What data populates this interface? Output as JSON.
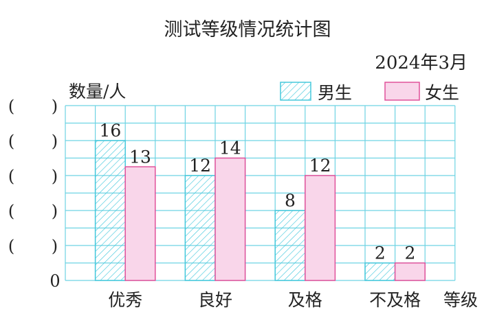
{
  "chart_data": {
    "type": "bar",
    "title": "测试等级情况统计图",
    "subtitle": "2024年3月",
    "ylabel": "数量/人",
    "xlabel": "等级",
    "categories": [
      "优秀",
      "良好",
      "及格",
      "不及格"
    ],
    "series": [
      {
        "name": "男生",
        "values": [
          16,
          12,
          8,
          2
        ],
        "color": "#45c8dc",
        "pattern": "hatched"
      },
      {
        "name": "女生",
        "values": [
          13,
          14,
          12,
          2
        ],
        "color": "#e0509a",
        "fill": "#f9d6ea"
      }
    ],
    "ylim": [
      0,
      20
    ],
    "y_tick_labels": [
      "0",
      "(      )",
      "(      )",
      "(      )",
      "(      )",
      "(      )"
    ],
    "grid": true,
    "grid_color": "#6dd3e3",
    "legend": "top-right"
  }
}
